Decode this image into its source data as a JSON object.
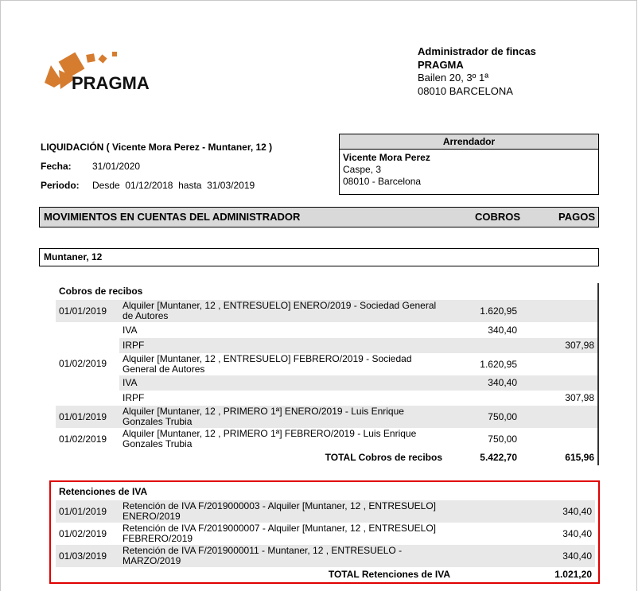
{
  "company": {
    "logo_text": "PRAGMA",
    "logo_color": "#d67c2f",
    "title": "Administrador de fincas",
    "name": "PRAGMA",
    "address": "Bailen 20, 3º 1ª",
    "city": "08010 BARCELONA"
  },
  "liquidacion": {
    "title": "LIQUIDACIÓN ( Vicente Mora Perez - Muntaner, 12 )",
    "fecha_label": "Fecha:",
    "fecha": "31/01/2020",
    "periodo_label": "Periodo:",
    "desde_label": "Desde",
    "desde": "01/12/2018",
    "hasta_label": "hasta",
    "hasta": "31/03/2019"
  },
  "arrendador": {
    "header": "Arrendador",
    "name": "Vicente Mora Perez",
    "street": "Caspe, 3",
    "city": "08010 - Barcelona"
  },
  "movimientos": {
    "title": "MOVIMIENTOS EN CUENTAS DEL ADMINISTRADOR",
    "cobros": "COBROS",
    "pagos": "PAGOS"
  },
  "property": "Muntaner, 12",
  "cobros": {
    "title": "Cobros de recibos",
    "rows": [
      {
        "date": "01/01/2019",
        "desc": "Alquiler [Muntaner, 12 , ENTRESUELO] ENERO/2019 - Sociedad General de Autores",
        "cobro": "1.620,95",
        "pago": ""
      },
      {
        "date": "01/02/2019",
        "desc": "IVA",
        "cobro": "340,40",
        "pago": ""
      },
      {
        "date": "",
        "desc": "IRPF",
        "cobro": "",
        "pago": "307,98"
      },
      {
        "date": "",
        "desc": "Alquiler [Muntaner, 12 , ENTRESUELO] FEBRERO/2019 - Sociedad General de Autores",
        "cobro": "1.620,95",
        "pago": ""
      },
      {
        "date": "",
        "desc": "IVA",
        "cobro": "340,40",
        "pago": ""
      },
      {
        "date": "",
        "desc": "IRPF",
        "cobro": "",
        "pago": "307,98"
      },
      {
        "date": "01/01/2019",
        "desc": "Alquiler [Muntaner, 12 , PRIMERO 1ª] ENERO/2019 - Luis Enrique Gonzales Trubia",
        "cobro": "750,00",
        "pago": ""
      },
      {
        "date": "01/02/2019",
        "desc": "Alquiler [Muntaner, 12 , PRIMERO 1ª] FEBRERO/2019 - Luis Enrique Gonzales Trubia",
        "cobro": "750,00",
        "pago": ""
      }
    ],
    "total_label": "TOTAL Cobros de recibos",
    "total_cobros": "5.422,70",
    "total_pagos": "615,96"
  },
  "retenciones": {
    "title": "Retenciones de IVA",
    "highlight_color": "#e00000",
    "rows": [
      {
        "date": "01/01/2019",
        "desc": "Retención de IVA F/2019000003 - Alquiler [Muntaner, 12 , ENTRESUELO] ENERO/2019",
        "pago": "340,40"
      },
      {
        "date": "01/02/2019",
        "desc": "Retención de IVA F/2019000007 - Alquiler [Muntaner, 12 , ENTRESUELO] FEBRERO/2019",
        "pago": "340,40"
      },
      {
        "date": "01/03/2019",
        "desc": "Retención de IVA F/2019000011 - Muntaner, 12 , ENTRESUELO - MARZO/2019",
        "pago": "340,40"
      }
    ],
    "total_label": "TOTAL Retenciones de IVA",
    "total": "1.021,20"
  }
}
